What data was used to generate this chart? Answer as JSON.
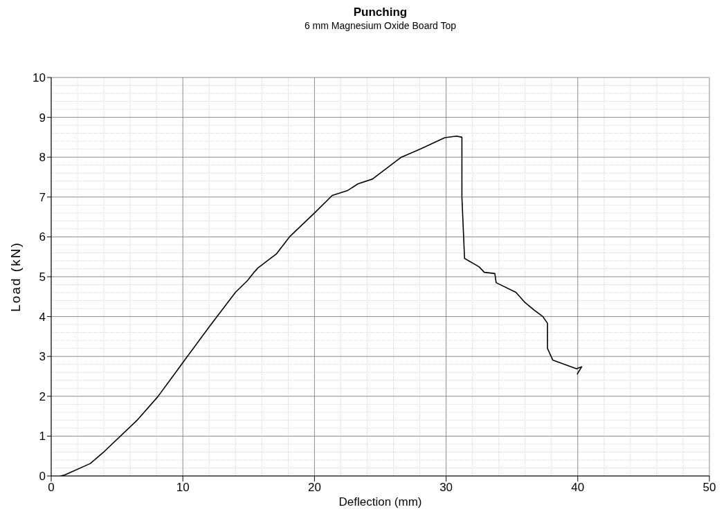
{
  "chart_data": {
    "type": "line",
    "title": "Punching",
    "subtitle": "6 mm Magnesium Oxide Board Top",
    "xlabel": "Deflection (mm)",
    "ylabel": "Load (kN)",
    "x": [
      0.7,
      1.0,
      2.96,
      4.05,
      6.5,
      8.1,
      10.1,
      12.0,
      14.0,
      14.9,
      15.4,
      15.6,
      15.7,
      17.1,
      18.1,
      20.0,
      21.35,
      22.5,
      23.3,
      24.4,
      25.8,
      26.6,
      28.0,
      29.9,
      30.8,
      31.2,
      31.2,
      31.4,
      32.5,
      32.9,
      33.7,
      33.8,
      35.3,
      36.0,
      36.7,
      37.35,
      37.7,
      37.7,
      38.1,
      39.9,
      40.3,
      39.95
    ],
    "series": [
      {
        "color": "#000000",
        "values": [
          0,
          0.02,
          0.31,
          0.62,
          1.39,
          1.99,
          2.89,
          3.74,
          4.61,
          4.9,
          5.11,
          5.18,
          5.22,
          5.57,
          6.0,
          6.6,
          7.04,
          7.16,
          7.33,
          7.45,
          7.8,
          8.0,
          8.2,
          8.49,
          8.53,
          8.5,
          7.0,
          5.46,
          5.25,
          5.11,
          5.08,
          4.85,
          4.61,
          4.35,
          4.16,
          4.0,
          3.83,
          3.2,
          2.91,
          2.69,
          2.74,
          2.55
        ]
      }
    ],
    "xlim": [
      0,
      50
    ],
    "xticks": [
      0,
      10,
      20,
      30,
      40,
      50
    ],
    "ylim": [
      0,
      10
    ],
    "yticks": [
      0,
      1,
      2,
      3,
      4,
      5,
      6,
      7,
      8,
      9,
      10
    ],
    "grid": true,
    "marker": "none",
    "line_style": "solid"
  }
}
